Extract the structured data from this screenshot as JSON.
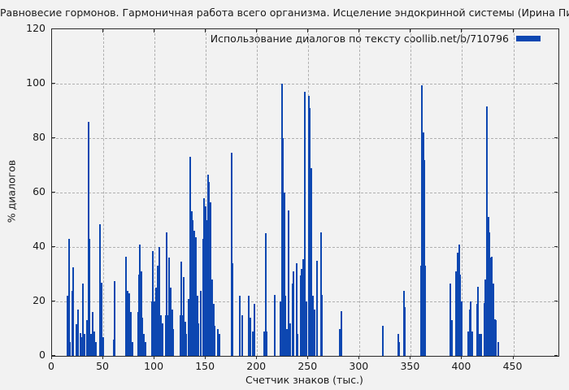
{
  "chart_data": {
    "type": "bar",
    "title": "Равновесие гормонов. Гармоничная работа всего организма. Исцеление эндокринной системы (Ирина Пигулевская)",
    "legend_label": "Использование диалогов по тексту coollib.net/b/710796",
    "xlabel": "Счетчик знаков (тыс.)",
    "ylabel": "% диалогов",
    "xlim": [
      0,
      494
    ],
    "ylim": [
      0,
      120
    ],
    "xticks": [
      0,
      50,
      100,
      150,
      200,
      250,
      300,
      350,
      400,
      450
    ],
    "yticks": [
      0,
      20,
      40,
      60,
      80,
      100,
      120
    ],
    "grid": true,
    "legend_position": "top-right-inside",
    "bar_color": "#0d47b1",
    "grid_color": "#b0b0b0",
    "background_color": "#f2f2f2",
    "bar_width_units": 1.6,
    "points": [
      [
        15.3,
        22
      ],
      [
        16.3,
        43
      ],
      [
        17.5,
        5
      ],
      [
        19.8,
        24
      ],
      [
        21,
        32.5
      ],
      [
        23.5,
        11.5
      ],
      [
        25.5,
        17
      ],
      [
        27.5,
        8.5
      ],
      [
        29.5,
        7
      ],
      [
        30.5,
        26.5
      ],
      [
        31.7,
        8
      ],
      [
        34,
        13
      ],
      [
        35.5,
        86
      ],
      [
        36.6,
        43
      ],
      [
        38,
        8
      ],
      [
        40,
        16
      ],
      [
        41.5,
        9
      ],
      [
        43,
        5
      ],
      [
        47,
        48.5
      ],
      [
        48.3,
        27
      ],
      [
        49.8,
        7
      ],
      [
        60,
        6
      ],
      [
        61,
        27.5
      ],
      [
        72.5,
        36.5
      ],
      [
        73.6,
        24
      ],
      [
        74.8,
        10
      ],
      [
        75.6,
        23
      ],
      [
        77,
        16
      ],
      [
        78.5,
        5
      ],
      [
        84,
        16
      ],
      [
        85,
        30
      ],
      [
        86,
        41
      ],
      [
        87.1,
        31
      ],
      [
        88.2,
        14
      ],
      [
        89.3,
        8
      ],
      [
        91.5,
        5
      ],
      [
        97.5,
        20
      ],
      [
        98.5,
        38.5
      ],
      [
        99.6,
        20
      ],
      [
        101.5,
        25
      ],
      [
        103,
        33
      ],
      [
        104.4,
        40
      ],
      [
        106,
        15
      ],
      [
        107.5,
        12
      ],
      [
        111,
        15
      ],
      [
        112,
        45.5
      ],
      [
        113.2,
        15
      ],
      [
        114.4,
        36
      ],
      [
        115.6,
        25
      ],
      [
        117,
        17
      ],
      [
        118.5,
        10
      ],
      [
        125,
        15
      ],
      [
        125.9,
        34.5
      ],
      [
        127,
        15
      ],
      [
        128.4,
        29
      ],
      [
        129.8,
        12.5
      ],
      [
        131.2,
        8
      ],
      [
        133.5,
        21
      ],
      [
        134.5,
        73
      ],
      [
        136,
        53
      ],
      [
        137.4,
        50
      ],
      [
        138.8,
        46
      ],
      [
        140.2,
        43.5
      ],
      [
        141.6,
        22
      ],
      [
        143,
        12
      ],
      [
        144.8,
        24
      ],
      [
        147.2,
        43
      ],
      [
        148.4,
        58
      ],
      [
        149.8,
        55
      ],
      [
        151,
        50
      ],
      [
        152.2,
        66.5
      ],
      [
        153.4,
        64
      ],
      [
        154.8,
        56.5
      ],
      [
        156.2,
        28
      ],
      [
        157.4,
        19
      ],
      [
        158.6,
        11
      ],
      [
        162,
        10
      ],
      [
        163.5,
        8
      ],
      [
        175,
        74.5
      ],
      [
        176.3,
        34
      ],
      [
        183,
        22
      ],
      [
        185.5,
        15
      ],
      [
        192,
        22
      ],
      [
        193.4,
        14
      ],
      [
        195.5,
        9
      ],
      [
        197.5,
        19
      ],
      [
        207,
        9
      ],
      [
        208.2,
        45
      ],
      [
        209.5,
        9
      ],
      [
        217.5,
        22.5
      ],
      [
        223,
        20
      ],
      [
        224.2,
        100
      ],
      [
        225.4,
        80
      ],
      [
        226.6,
        60
      ],
      [
        227.8,
        22
      ],
      [
        229.3,
        10
      ],
      [
        230.7,
        53.5
      ],
      [
        232,
        12
      ],
      [
        234.5,
        26.5
      ],
      [
        235.8,
        31
      ],
      [
        238.3,
        34
      ],
      [
        239.8,
        8
      ],
      [
        242.4,
        29.5
      ],
      [
        243.8,
        32
      ],
      [
        245.2,
        35.5
      ],
      [
        246.8,
        97
      ],
      [
        248.3,
        20
      ],
      [
        250.2,
        95.5
      ],
      [
        251.5,
        91
      ],
      [
        253,
        69
      ],
      [
        254.4,
        22
      ],
      [
        255.8,
        17
      ],
      [
        258.4,
        35
      ],
      [
        262.2,
        45.5
      ],
      [
        263.5,
        22.5
      ],
      [
        281,
        10
      ],
      [
        282.1,
        16.5
      ],
      [
        322.8,
        11
      ],
      [
        337.5,
        8
      ],
      [
        338.8,
        5
      ],
      [
        343,
        24
      ],
      [
        344.2,
        18
      ],
      [
        360,
        33
      ],
      [
        361,
        99.5
      ],
      [
        362.1,
        82
      ],
      [
        363.2,
        72
      ],
      [
        364.3,
        33
      ],
      [
        388.5,
        26.5
      ],
      [
        390,
        13
      ],
      [
        394.4,
        31
      ],
      [
        395.7,
        38
      ],
      [
        397,
        41
      ],
      [
        398.3,
        30
      ],
      [
        399.6,
        20
      ],
      [
        406,
        9
      ],
      [
        407.4,
        17
      ],
      [
        408.6,
        20
      ],
      [
        410,
        9
      ],
      [
        414.4,
        19
      ],
      [
        415.8,
        25.5
      ],
      [
        417.2,
        8
      ],
      [
        419,
        8
      ],
      [
        421.5,
        19.5
      ],
      [
        423,
        28
      ],
      [
        424.4,
        91.5
      ],
      [
        425.6,
        51
      ],
      [
        426.8,
        45.5
      ],
      [
        428,
        36
      ],
      [
        429.2,
        36.5
      ],
      [
        430.4,
        26.5
      ],
      [
        431.8,
        13.5
      ],
      [
        433.2,
        13
      ],
      [
        435,
        5
      ]
    ]
  }
}
